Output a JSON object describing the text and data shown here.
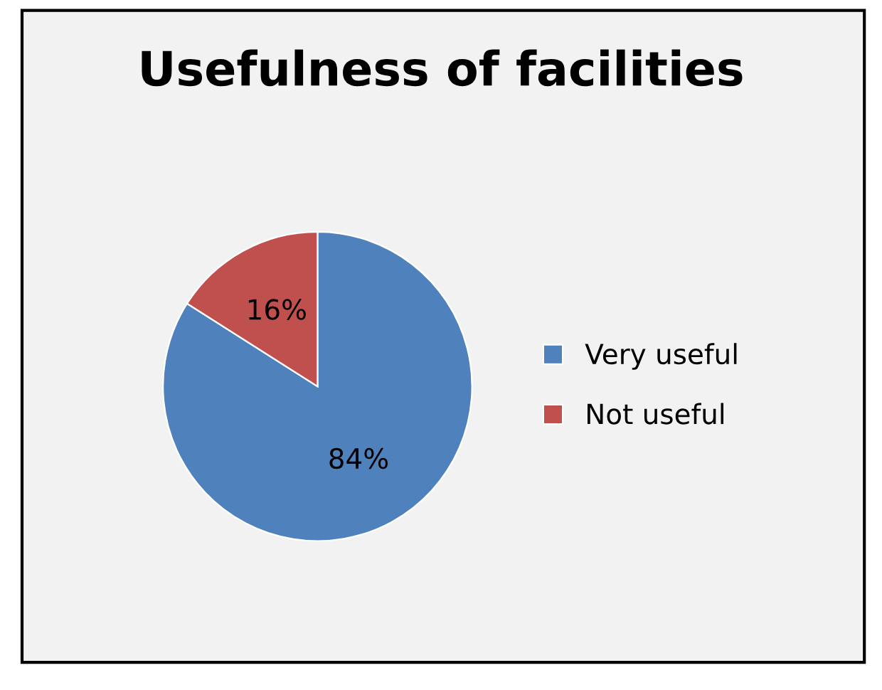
{
  "chart_data": {
    "type": "pie",
    "title": "Usefulness of facilities",
    "categories": [
      "Very useful",
      "Not useful"
    ],
    "values": [
      84,
      16
    ],
    "colors": [
      "#4f81bd",
      "#c0504d"
    ],
    "value_labels": [
      "84%",
      "16%"
    ],
    "legend": "right"
  }
}
